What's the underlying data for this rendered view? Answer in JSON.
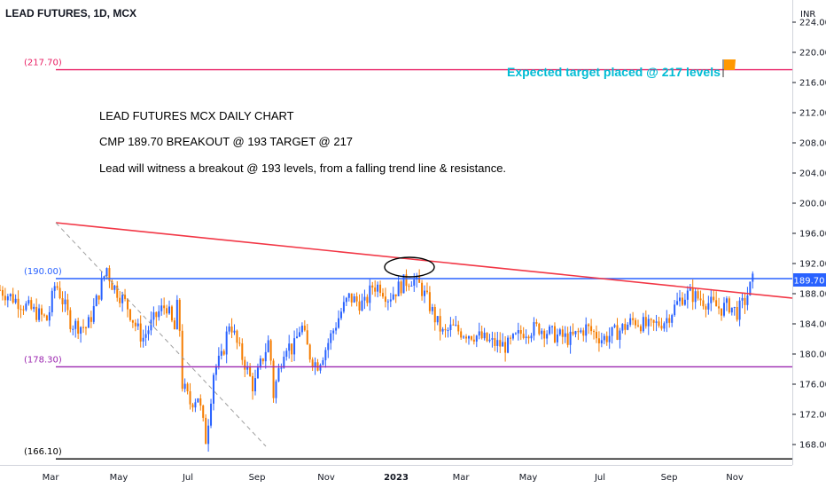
{
  "header": {
    "symbol_title": "LEAD FUTURES, 1D, MCX",
    "currency": "INR"
  },
  "annotations": {
    "line1": "LEAD FUTURES MCX   DAILY   CHART",
    "line2": "CMP 189.70       BREAKOUT @ 193       TARGET @ 217",
    "line3": "Lead will witness a breakout @ 193 levels, from a falling trend line & resistance.",
    "target_note": "Expected target placed @ 217 levels"
  },
  "colors": {
    "up": "#2962ff",
    "down": "#f57c00",
    "target_line": "#e91e63",
    "resistance_line": "#2962ff",
    "support_line": "#9c27b0",
    "base_line": "#000000",
    "trend_line": "#f23645",
    "dashed_trend": "#9e9e9e",
    "flag": "#ff9800",
    "target_text": "#00bcd4"
  },
  "chart_data": {
    "type": "candlestick",
    "title": "LEAD FUTURES, 1D, MCX",
    "y_axis": {
      "ticks": [
        168,
        172,
        176,
        180,
        184,
        188,
        192,
        196,
        200,
        204,
        208,
        212,
        216,
        220,
        224
      ],
      "ylim": [
        164.6,
        226.2
      ],
      "unit": "INR"
    },
    "x_axis": {
      "ticks": [
        "Mar",
        "May",
        "Jul",
        "Sep",
        "Nov",
        "2023",
        "Mar",
        "May",
        "Jul",
        "Sep",
        "Nov"
      ]
    },
    "current_price": 189.7,
    "current_price_label": "189.70",
    "levels": [
      {
        "name": "target",
        "value": 217.7,
        "label": "(217.70)"
      },
      {
        "name": "resistance",
        "value": 190.0,
        "label": "(190.00)"
      },
      {
        "name": "support",
        "value": 178.3,
        "label": "(178.30)"
      },
      {
        "name": "base",
        "value": 166.1,
        "label": "(166.10)"
      }
    ],
    "trendline": {
      "from": {
        "x": "Mar",
        "y": 198.0
      },
      "to": {
        "x": "after Nov",
        "y": 187.5
      }
    },
    "close_path": [
      [
        0,
        188.5
      ],
      [
        0.03,
        186.5
      ],
      [
        0.06,
        184.5
      ],
      [
        0.07,
        189.5
      ],
      [
        0.08,
        186.8
      ],
      [
        0.09,
        184.0
      ],
      [
        0.11,
        183.5
      ],
      [
        0.12,
        186.5
      ],
      [
        0.135,
        191.5
      ],
      [
        0.14,
        189.5
      ],
      [
        0.16,
        186.5
      ],
      [
        0.17,
        184.0
      ],
      [
        0.18,
        182.0
      ],
      [
        0.19,
        183.8
      ],
      [
        0.2,
        185.5
      ],
      [
        0.21,
        186.5
      ],
      [
        0.22,
        183.0
      ],
      [
        0.225,
        187.5
      ],
      [
        0.23,
        176.0
      ],
      [
        0.24,
        173.5
      ],
      [
        0.25,
        174.5
      ],
      [
        0.26,
        168.5
      ],
      [
        0.27,
        178.0
      ],
      [
        0.28,
        179.5
      ],
      [
        0.29,
        184.5
      ],
      [
        0.3,
        181.0
      ],
      [
        0.31,
        178.5
      ],
      [
        0.32,
        175.5
      ],
      [
        0.33,
        179.0
      ],
      [
        0.34,
        182.0
      ],
      [
        0.345,
        174.5
      ],
      [
        0.35,
        177.0
      ],
      [
        0.36,
        181.5
      ],
      [
        0.37,
        180.5
      ],
      [
        0.38,
        184.0
      ],
      [
        0.39,
        180.0
      ],
      [
        0.4,
        178.5
      ],
      [
        0.41,
        180.5
      ],
      [
        0.42,
        183.0
      ],
      [
        0.43,
        185.5
      ],
      [
        0.44,
        187.5
      ],
      [
        0.45,
        187.0
      ],
      [
        0.46,
        186.5
      ],
      [
        0.47,
        189.0
      ],
      [
        0.48,
        189.0
      ],
      [
        0.49,
        187.5
      ],
      [
        0.5,
        188.5
      ],
      [
        0.51,
        189.5
      ],
      [
        0.52,
        190.0
      ],
      [
        0.53,
        189.0
      ],
      [
        0.54,
        187.0
      ],
      [
        0.55,
        184.5
      ],
      [
        0.56,
        182.5
      ],
      [
        0.57,
        183.5
      ],
      [
        0.58,
        183.0
      ],
      [
        0.6,
        182.5
      ],
      [
        0.62,
        181.5
      ],
      [
        0.64,
        181.0
      ],
      [
        0.66,
        183.0
      ],
      [
        0.68,
        183.5
      ],
      [
        0.7,
        182.5
      ],
      [
        0.72,
        182.0
      ],
      [
        0.74,
        183.5
      ],
      [
        0.76,
        182.0
      ],
      [
        0.78,
        183.0
      ],
      [
        0.8,
        184.5
      ],
      [
        0.82,
        183.5
      ],
      [
        0.84,
        184.5
      ],
      [
        0.86,
        187.5
      ],
      [
        0.87,
        188.0
      ],
      [
        0.88,
        187.5
      ],
      [
        0.89,
        187.0
      ],
      [
        0.9,
        186.5
      ],
      [
        0.91,
        186.0
      ],
      [
        0.92,
        186.5
      ],
      [
        0.93,
        185.5
      ],
      [
        0.94,
        187.0
      ],
      [
        0.95,
        189.7
      ]
    ]
  }
}
